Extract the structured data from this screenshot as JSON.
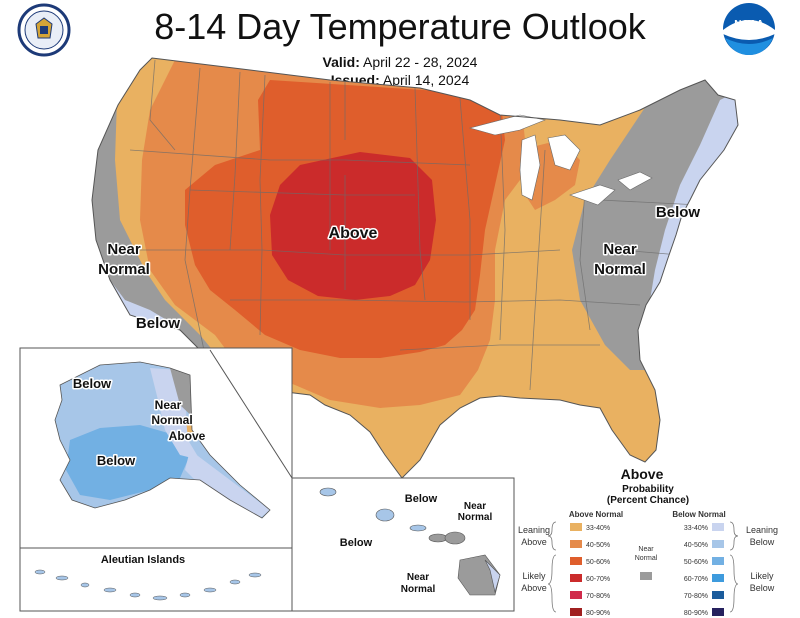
{
  "header": {
    "title": "8-14 Day Temperature Outlook",
    "valid_label": "Valid:",
    "valid_value": "April 22 - 28, 2024",
    "issued_label": "Issued:",
    "issued_value": "April 14, 2024"
  },
  "colors": {
    "above_33_40": "#e9b161",
    "above_40_50": "#e58a4a",
    "above_50_60": "#df5e2c",
    "above_60_70": "#cb2b2b",
    "above_70_80": "#d02a4a",
    "above_80_90": "#a02020",
    "above_90_100": "#5a1a12",
    "near_normal": "#9b9b9b",
    "below_33_40": "#c9d4ef",
    "below_40_50": "#a7c6e8",
    "below_50_60": "#72b0e3",
    "below_60_70": "#3e9bdd",
    "below_70_80": "#1b5c9c",
    "below_80_90": "#2e3a8e",
    "below_90_100": "#26215e",
    "water": "#ffffff",
    "state_lines": "#6b6b6b"
  },
  "map_labels": {
    "conus_above": "Above",
    "conus_west_near": "Near",
    "conus_west_normal": "Normal",
    "conus_sw_below": "Below",
    "conus_east_near": "Near",
    "conus_east_normal": "Normal",
    "conus_ne_below": "Below",
    "ak_below_north": "Below",
    "ak_below_south": "Below",
    "ak_near": "Near",
    "ak_normal": "Normal",
    "ak_above": "Above",
    "aleutian_title": "Aleutian Islands",
    "hi_below_1": "Below",
    "hi_below_2": "Below",
    "hi_near_1": "Near",
    "hi_normal_1": "Normal",
    "hi_near_2": "Near",
    "hi_normal_2": "Normal"
  },
  "legend": {
    "title": "Above",
    "subtitle1": "Probability",
    "subtitle2": "(Percent Chance)",
    "above_header": "Above Normal",
    "below_header": "Below Normal",
    "near_line1": "Near",
    "near_line2": "Normal",
    "leaning_above_1": "Leaning",
    "leaning_above_2": "Above",
    "likely_above_1": "Likely",
    "likely_above_2": "Above",
    "leaning_below_1": "Leaning",
    "leaning_below_2": "Below",
    "likely_below_1": "Likely",
    "likely_below_2": "Below",
    "bins": [
      "33-40%",
      "40-50%",
      "50-60%",
      "60-70%",
      "70-80%",
      "80-90%",
      "90-100%"
    ]
  },
  "logos": {
    "commerce_seal": "department-of-commerce-seal",
    "noaa": "NOAA"
  }
}
